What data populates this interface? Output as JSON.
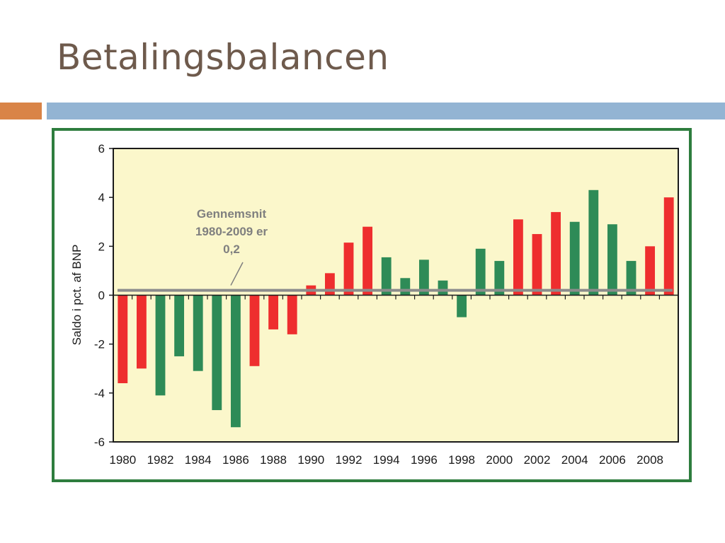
{
  "slide": {
    "title": "Betalingsbalancen",
    "colors": {
      "title": "#6e5a4c",
      "accent_orange": "#d98447",
      "accent_blue": "#93b4d3",
      "frame": "#2e7d3e"
    }
  },
  "chart_data": {
    "type": "bar",
    "ylabel": "Saldo i pct. af BNP",
    "xlabel": "",
    "ylim": [
      -6,
      6
    ],
    "yticks": [
      -6,
      -4,
      -2,
      0,
      2,
      4,
      6
    ],
    "xtick_labels": [
      "1980",
      "1982",
      "1984",
      "1986",
      "1988",
      "1990",
      "1992",
      "1994",
      "1996",
      "1998",
      "2000",
      "2002",
      "2004",
      "2006",
      "2008"
    ],
    "categories": [
      "1980",
      "1981",
      "1982",
      "1983",
      "1984",
      "1985",
      "1986",
      "1987",
      "1988",
      "1989",
      "1990",
      "1991",
      "1992",
      "1993",
      "1994",
      "1995",
      "1996",
      "1997",
      "1998",
      "1999",
      "2000",
      "2001",
      "2002",
      "2003",
      "2004",
      "2005",
      "2006",
      "2007",
      "2008",
      "2009"
    ],
    "values": [
      -3.6,
      -3.0,
      -4.1,
      -2.5,
      -3.1,
      -4.7,
      -5.4,
      -2.9,
      -1.4,
      -1.6,
      0.4,
      0.9,
      2.15,
      2.8,
      1.55,
      0.7,
      1.45,
      0.6,
      -0.9,
      1.9,
      1.4,
      3.1,
      2.5,
      3.4,
      3.0,
      4.3,
      2.9,
      1.4,
      2.0,
      4.0
    ],
    "bar_colors": [
      "#ee2e2e",
      "#ee2e2e",
      "#2e8b57",
      "#2e8b57",
      "#2e8b57",
      "#2e8b57",
      "#2e8b57",
      "#ee2e2e",
      "#ee2e2e",
      "#ee2e2e",
      "#ee2e2e",
      "#ee2e2e",
      "#ee2e2e",
      "#ee2e2e",
      "#2e8b57",
      "#2e8b57",
      "#2e8b57",
      "#2e8b57",
      "#2e8b57",
      "#2e8b57",
      "#2e8b57",
      "#ee2e2e",
      "#ee2e2e",
      "#ee2e2e",
      "#2e8b57",
      "#2e8b57",
      "#2e8b57",
      "#2e8b57",
      "#ee2e2e",
      "#ee2e2e"
    ],
    "average": {
      "value": 0.2,
      "label_lines": [
        "Gennemsnit",
        "1980-2009 er",
        "0,2"
      ],
      "color": "#8c8c8c"
    },
    "plot_background": "#fbf7cb",
    "grid": false,
    "legend": "none"
  }
}
